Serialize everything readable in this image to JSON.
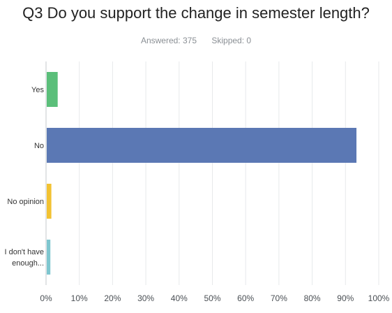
{
  "question": {
    "title": "Q3 Do you support the change in semester length?",
    "answered_label": "Answered: 375",
    "skipped_label": "Skipped: 0"
  },
  "chart_data": {
    "type": "bar",
    "orientation": "horizontal",
    "categories": [
      [
        "Yes"
      ],
      [
        "No"
      ],
      [
        "No opinion"
      ],
      [
        "I don't have",
        "enough..."
      ]
    ],
    "values": [
      3.5,
      93.3,
      1.6,
      1.3
    ],
    "colors": [
      "#5bbf7a",
      "#5b78b4",
      "#f2c232",
      "#7ec6cf"
    ],
    "xlim": [
      0,
      100
    ],
    "xticks": [
      0,
      10,
      20,
      30,
      40,
      50,
      60,
      70,
      80,
      90,
      100
    ],
    "xtick_labels": [
      "0%",
      "10%",
      "20%",
      "30%",
      "40%",
      "50%",
      "60%",
      "70%",
      "80%",
      "90%",
      "100%"
    ],
    "grid": "vertical"
  }
}
